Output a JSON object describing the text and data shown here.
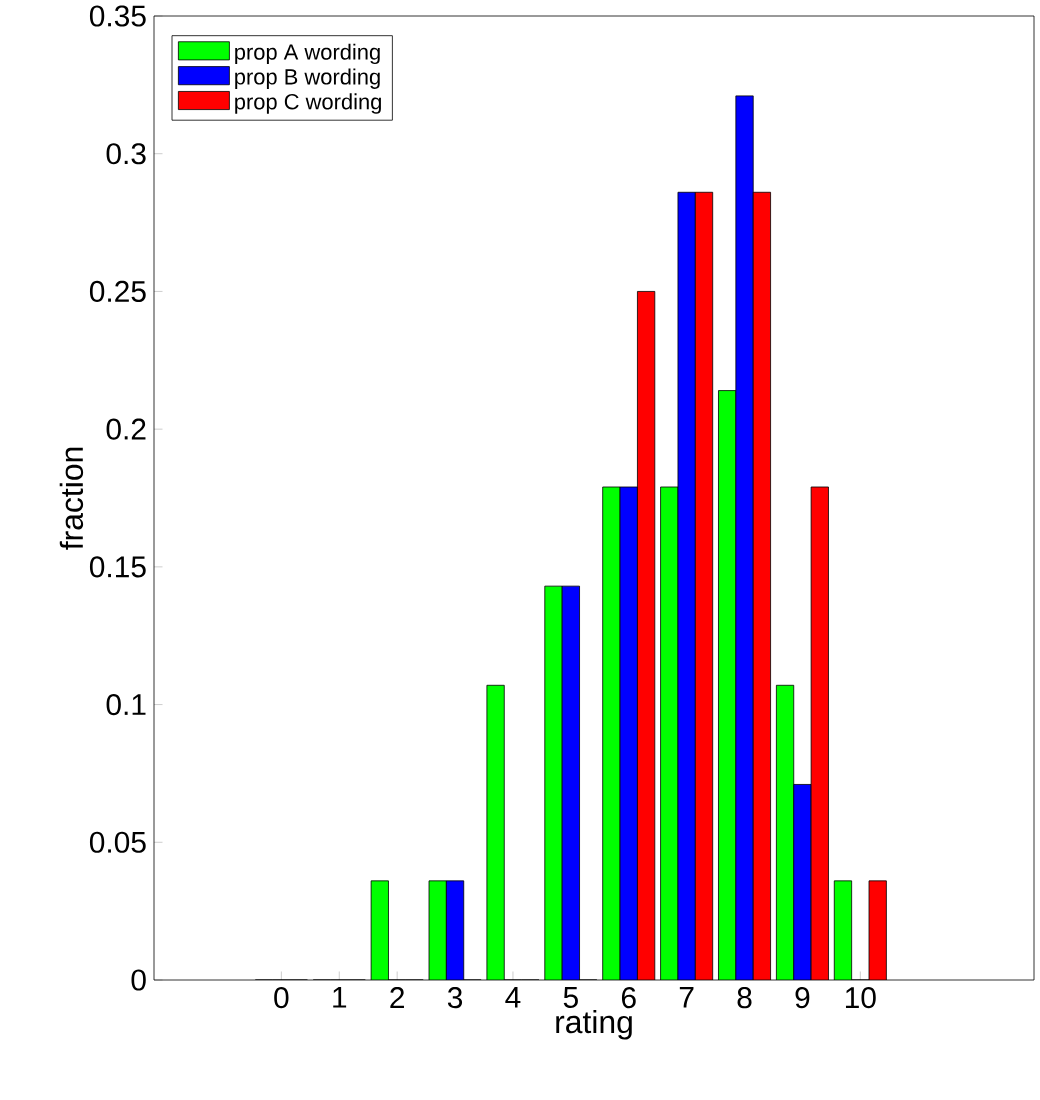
{
  "chart_data": {
    "type": "bar",
    "xlabel": "rating",
    "ylabel": "fraction",
    "categories": [
      "0",
      "1",
      "2",
      "3",
      "4",
      "5",
      "6",
      "7",
      "8",
      "9",
      "10"
    ],
    "series": [
      {
        "name": "prop A wording",
        "color": "#00ff00",
        "values": [
          0,
          0,
          0.036,
          0.036,
          0.107,
          0.143,
          0.179,
          0.179,
          0.214,
          0.107,
          0.036
        ]
      },
      {
        "name": "prop B wording",
        "color": "#0000ff",
        "values": [
          0,
          0,
          0,
          0.036,
          0,
          0.143,
          0.179,
          0.286,
          0.321,
          0.071,
          0
        ]
      },
      {
        "name": "prop C wording",
        "color": "#ff0000",
        "values": [
          0,
          0,
          0,
          0,
          0,
          0,
          0.25,
          0.286,
          0.286,
          0.179,
          0.036
        ]
      }
    ],
    "ylim": [
      0,
      0.35
    ],
    "yticks": [
      0,
      0.05,
      0.1,
      0.15,
      0.2,
      0.25,
      0.3,
      0.35
    ],
    "legend": "top left"
  }
}
